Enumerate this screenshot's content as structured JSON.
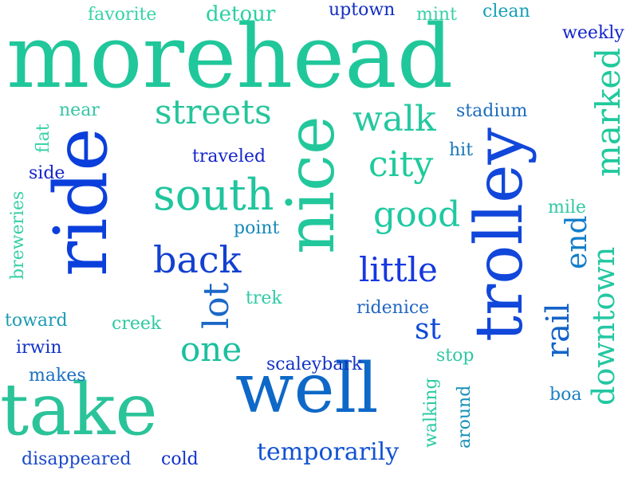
{
  "palette": {
    "teal": "#22c49a",
    "teal_light": "#3fd3a3",
    "green": "#1fca8c",
    "blue": "#0a3fdd",
    "blue_mid": "#1a5fd2",
    "blue_dark": "#1020c8",
    "cyan_blue": "#0f8fc0",
    "royal": "#1c47d6",
    "steel": "#1778c4"
  },
  "words": [
    {
      "text": "morehead",
      "color": "#20c79a",
      "vertical": false
    },
    {
      "text": "trolley",
      "color": "#1147da",
      "vertical": true
    },
    {
      "text": "ride",
      "color": "#0b3fdc",
      "vertical": true
    },
    {
      "text": "nice",
      "color": "#22c89b",
      "vertical": true
    },
    {
      "text": "take",
      "color": "#2bc39a",
      "vertical": false
    },
    {
      "text": "well",
      "color": "#0e68c7",
      "vertical": false
    },
    {
      "text": "south",
      "color": "#1fc59d",
      "vertical": false
    },
    {
      "text": "streets",
      "color": "#25c59a",
      "vertical": false
    },
    {
      "text": "walk",
      "color": "#25c8a0",
      "vertical": false
    },
    {
      "text": "city",
      "color": "#1ecb9b",
      "vertical": false
    },
    {
      "text": "good",
      "color": "#1fc9a1",
      "vertical": false
    },
    {
      "text": "back",
      "color": "#1240d0",
      "vertical": false
    },
    {
      "text": "little",
      "color": "#1638e0",
      "vertical": false
    },
    {
      "text": "one",
      "color": "#1bbf9f",
      "vertical": false
    },
    {
      "text": "lot",
      "color": "#1b68c8",
      "vertical": true
    },
    {
      "text": "st",
      "color": "#0e4ad8",
      "vertical": false
    },
    {
      "text": "marked",
      "color": "#1fc99c",
      "vertical": true
    },
    {
      "text": "end",
      "color": "#127ec9",
      "vertical": true
    },
    {
      "text": "rail",
      "color": "#1563c8",
      "vertical": true
    },
    {
      "text": "downtown",
      "color": "#23c7a2",
      "vertical": true
    },
    {
      "text": "temporarily",
      "color": "#1252d2",
      "vertical": false
    },
    {
      "text": "detour",
      "color": "#2ad1a2",
      "vertical": false
    },
    {
      "text": "favorite",
      "color": "#37d3a6",
      "vertical": false
    },
    {
      "text": "uptown",
      "color": "#132ec3",
      "vertical": false
    },
    {
      "text": "mint",
      "color": "#38cfa8",
      "vertical": false
    },
    {
      "text": "clean",
      "color": "#16a0b5",
      "vertical": false
    },
    {
      "text": "weekly",
      "color": "#1124cc",
      "vertical": false
    },
    {
      "text": "near",
      "color": "#35c5a6",
      "vertical": false
    },
    {
      "text": "stadium",
      "color": "#1b6bbf",
      "vertical": false
    },
    {
      "text": "flat",
      "color": "#38d2a6",
      "vertical": true
    },
    {
      "text": "traveled",
      "color": "#1424cb",
      "vertical": false
    },
    {
      "text": "hit",
      "color": "#1876b9",
      "vertical": false
    },
    {
      "text": "side",
      "color": "#1326c9",
      "vertical": false
    },
    {
      "text": "breweries",
      "color": "#38cfa7",
      "vertical": true
    },
    {
      "text": "mile",
      "color": "#30c9a4",
      "vertical": false
    },
    {
      "text": "point",
      "color": "#1689b9",
      "vertical": false
    },
    {
      "text": "trek",
      "color": "#30c9a6",
      "vertical": false
    },
    {
      "text": "ridenice",
      "color": "#1f66c2",
      "vertical": false
    },
    {
      "text": "toward",
      "color": "#1c9bb3",
      "vertical": false
    },
    {
      "text": "creek",
      "color": "#2ec9a2",
      "vertical": false
    },
    {
      "text": "irwin",
      "color": "#1236c8",
      "vertical": false
    },
    {
      "text": "scaleybark",
      "color": "#1233c5",
      "vertical": false
    },
    {
      "text": "stop",
      "color": "#30c8a6",
      "vertical": false
    },
    {
      "text": "makes",
      "color": "#1a6fc1",
      "vertical": false
    },
    {
      "text": "walking",
      "color": "#2dc9a4",
      "vertical": true
    },
    {
      "text": "around",
      "color": "#1690b8",
      "vertical": true
    },
    {
      "text": "boa",
      "color": "#1e7fc0",
      "vertical": false
    },
    {
      "text": "disappeared",
      "color": "#1a49c9",
      "vertical": false
    },
    {
      "text": "cold",
      "color": "#1330c9",
      "vertical": false
    }
  ]
}
